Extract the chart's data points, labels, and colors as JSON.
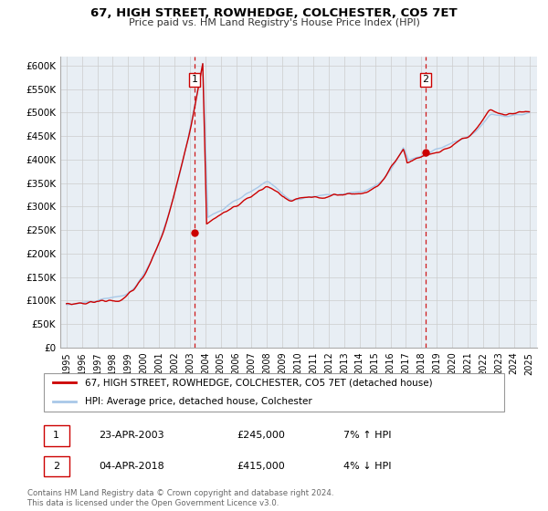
{
  "title": "67, HIGH STREET, ROWHEDGE, COLCHESTER, CO5 7ET",
  "subtitle": "Price paid vs. HM Land Registry's House Price Index (HPI)",
  "ylim": [
    0,
    620000
  ],
  "xlim_start": 1994.6,
  "xlim_end": 2025.5,
  "yticks": [
    0,
    50000,
    100000,
    150000,
    200000,
    250000,
    300000,
    350000,
    400000,
    450000,
    500000,
    550000,
    600000
  ],
  "ytick_labels": [
    "£0",
    "£50K",
    "£100K",
    "£150K",
    "£200K",
    "£250K",
    "£300K",
    "£350K",
    "£400K",
    "£450K",
    "£500K",
    "£550K",
    "£600K"
  ],
  "xticks": [
    1995,
    1996,
    1997,
    1998,
    1999,
    2000,
    2001,
    2002,
    2003,
    2004,
    2005,
    2006,
    2007,
    2008,
    2009,
    2010,
    2011,
    2012,
    2013,
    2014,
    2015,
    2016,
    2017,
    2018,
    2019,
    2020,
    2021,
    2022,
    2023,
    2024,
    2025
  ],
  "sale1_x": 2003.3,
  "sale1_y": 245000,
  "sale1_label": "1",
  "sale1_date": "23-APR-2003",
  "sale1_price": "£245,000",
  "sale1_hpi": "7% ↑ HPI",
  "sale2_x": 2018.27,
  "sale2_y": 415000,
  "sale2_label": "2",
  "sale2_date": "04-APR-2018",
  "sale2_price": "£415,000",
  "sale2_hpi": "4% ↓ HPI",
  "hpi_color": "#a8c8e8",
  "price_color": "#cc0000",
  "vline_color": "#cc0000",
  "grid_color": "#cccccc",
  "bg_color": "#e8eef4",
  "legend_label_price": "67, HIGH STREET, ROWHEDGE, COLCHESTER, CO5 7ET (detached house)",
  "legend_label_hpi": "HPI: Average price, detached house, Colchester",
  "footer": "Contains HM Land Registry data © Crown copyright and database right 2024.\nThis data is licensed under the Open Government Licence v3.0."
}
